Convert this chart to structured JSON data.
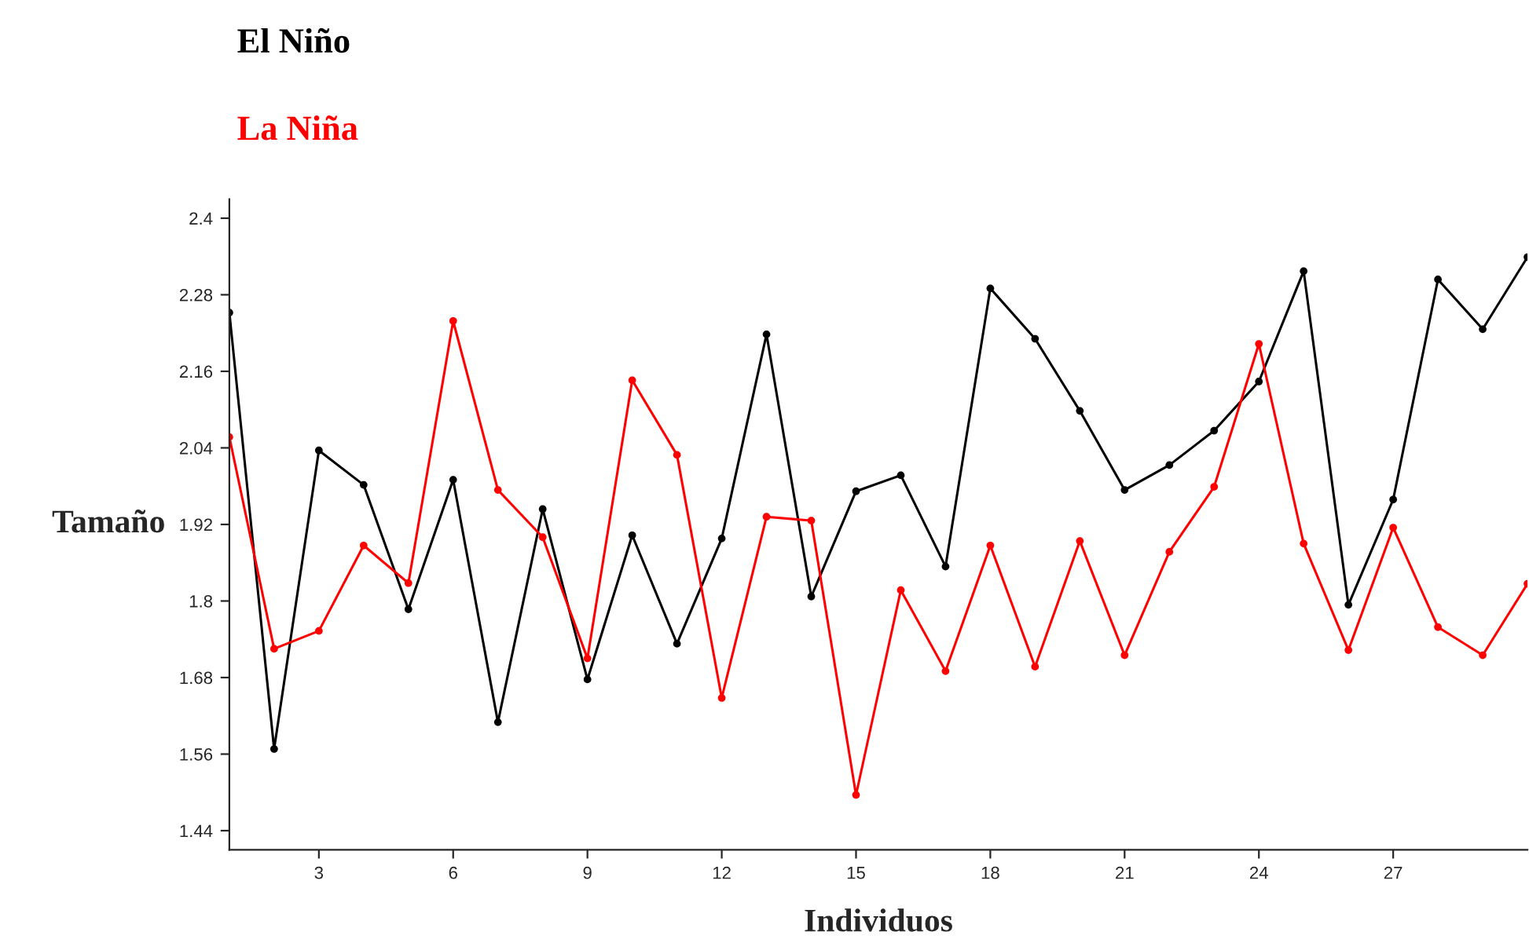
{
  "chart_data": {
    "type": "line",
    "xlabel": "Individuos",
    "ylabel": "Tamaño",
    "x": [
      1,
      2,
      3,
      4,
      5,
      6,
      7,
      8,
      9,
      10,
      11,
      12,
      13,
      14,
      15,
      16,
      17,
      18,
      19,
      20,
      21,
      22,
      23,
      24,
      25,
      26,
      27,
      28,
      29,
      30
    ],
    "series": [
      {
        "name": "El Niño",
        "color": "#000000",
        "values": [
          2.252,
          1.568,
          2.036,
          1.982,
          1.787,
          1.99,
          1.61,
          1.944,
          1.677,
          1.903,
          1.733,
          1.898,
          2.218,
          1.807,
          1.972,
          1.997,
          1.854,
          2.29,
          2.211,
          2.098,
          1.974,
          2.013,
          2.067,
          2.144,
          2.317,
          1.794,
          1.959,
          2.304,
          2.226,
          2.339
        ]
      },
      {
        "name": "La Niña",
        "color": "#ff0000",
        "values": [
          2.057,
          1.725,
          1.753,
          1.887,
          1.828,
          2.239,
          1.974,
          1.9,
          1.71,
          2.146,
          2.029,
          1.648,
          1.932,
          1.926,
          1.496,
          1.817,
          1.69,
          1.887,
          1.697,
          1.894,
          1.715,
          1.877,
          1.979,
          2.203,
          1.89,
          1.723,
          1.915,
          1.759,
          1.715,
          1.827
        ]
      }
    ],
    "xlim": [
      1,
      30
    ],
    "xticks": [
      3,
      6,
      9,
      12,
      15,
      18,
      21,
      24,
      27
    ],
    "ylim": [
      1.41,
      2.43
    ],
    "yticks": [
      1.44,
      1.56,
      1.68,
      1.8,
      1.92,
      2.04,
      2.16,
      2.28,
      2.4
    ],
    "grid": false,
    "legend": "top left",
    "marker": "circle",
    "line_style": "solid"
  }
}
